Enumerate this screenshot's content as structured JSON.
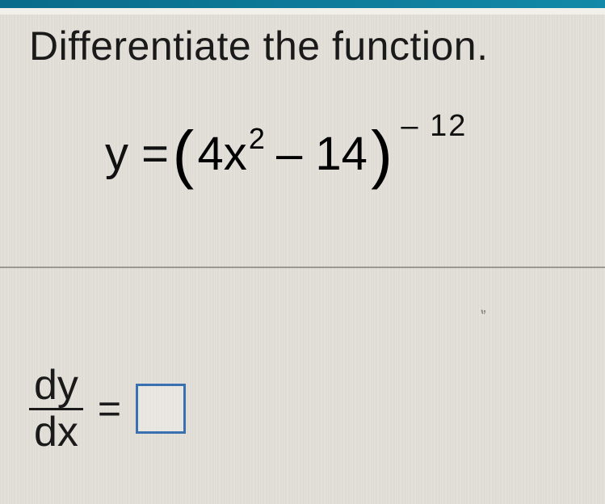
{
  "bar_color_start": "#0a6b8a",
  "bar_color_end": "#1289a8",
  "instruction": "Differentiate the function.",
  "equation": {
    "y_equals": "y = ",
    "open_paren": "(",
    "coef": "4x",
    "inner_exp": "2",
    "minus_term": " – 14",
    "close_paren": ")",
    "outer_exp": "– 12"
  },
  "answer": {
    "numerator": "dy",
    "denominator": "dx",
    "equals": "="
  },
  "smudge": "⹁,",
  "box_border_color": "#3a6fb0"
}
